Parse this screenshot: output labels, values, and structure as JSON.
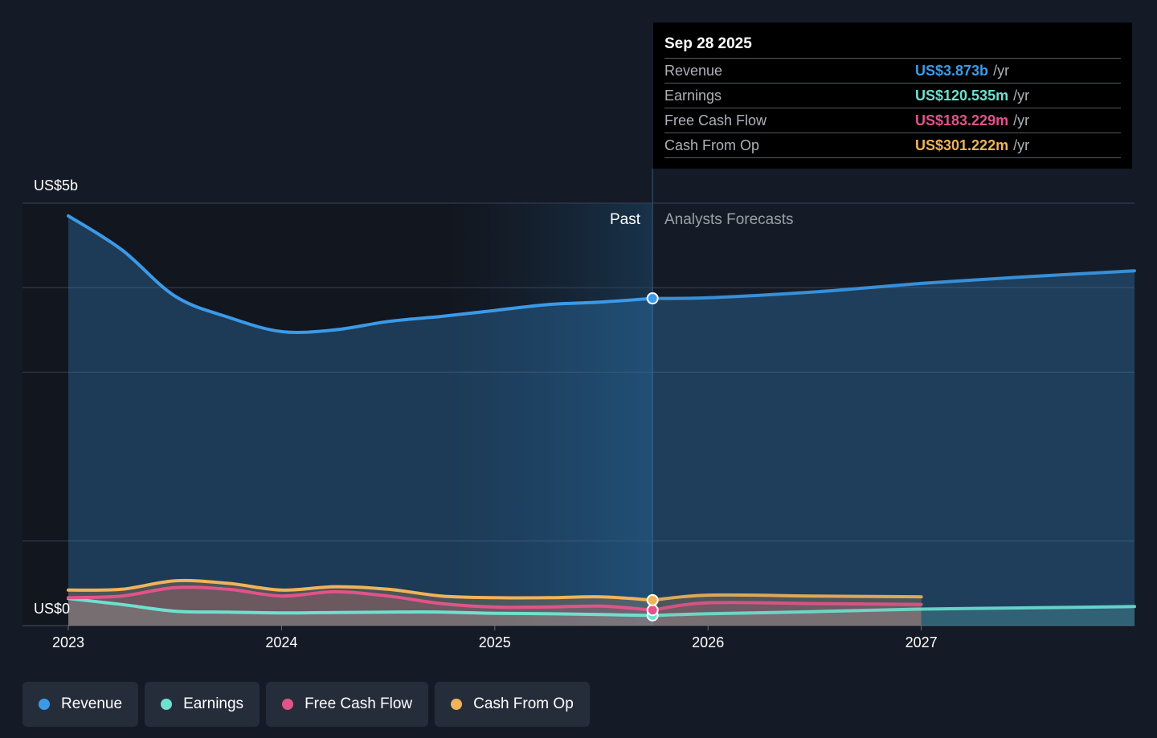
{
  "tooltip": {
    "date": "Sep 28 2025",
    "rows": [
      {
        "label": "Revenue",
        "value": "US$3.873b",
        "unit": "/yr",
        "color": "#3b9ae8"
      },
      {
        "label": "Earnings",
        "value": "US$120.535m",
        "unit": "/yr",
        "color": "#6ee0d0"
      },
      {
        "label": "Free Cash Flow",
        "value": "US$183.229m",
        "unit": "/yr",
        "color": "#e0548a"
      },
      {
        "label": "Cash From Op",
        "value": "US$301.222m",
        "unit": "/yr",
        "color": "#f0b35a"
      }
    ]
  },
  "regions": {
    "past": "Past",
    "forecast": "Analysts Forecasts"
  },
  "legend": [
    {
      "label": "Revenue",
      "color": "#3b9ae8",
      "icon": "revenue-dot-icon"
    },
    {
      "label": "Earnings",
      "color": "#6ee0d0",
      "icon": "earnings-dot-icon"
    },
    {
      "label": "Free Cash Flow",
      "color": "#e0548a",
      "icon": "fcf-dot-icon"
    },
    {
      "label": "Cash From Op",
      "color": "#f0b35a",
      "icon": "cfo-dot-icon"
    }
  ],
  "chart_data": {
    "type": "area",
    "title": "",
    "xlabel": "",
    "ylabel": "",
    "y_tick_labels": {
      "top": "US$5b",
      "bottom": "US$0"
    },
    "ylim": [
      0,
      5.0
    ],
    "xlim": [
      2023.0,
      2028.0
    ],
    "x_ticks": [
      {
        "label": "2023",
        "value": 2023
      },
      {
        "label": "2024",
        "value": 2024
      },
      {
        "label": "2025",
        "value": 2025
      },
      {
        "label": "2026",
        "value": 2026
      },
      {
        "label": "2027",
        "value": 2027
      }
    ],
    "gridlines": [
      1.0,
      3.0,
      4.0,
      5.0
    ],
    "grid": true,
    "past_shade_start": 2024.75,
    "today": 2025.74,
    "series": [
      {
        "name": "Revenue",
        "color": "#3b9ae8",
        "past": [
          [
            2023.0,
            4.85
          ],
          [
            2023.25,
            4.45
          ],
          [
            2023.5,
            3.9
          ],
          [
            2023.75,
            3.65
          ],
          [
            2024.0,
            3.48
          ],
          [
            2024.25,
            3.5
          ],
          [
            2024.5,
            3.6
          ],
          [
            2024.75,
            3.66
          ],
          [
            2025.0,
            3.73
          ],
          [
            2025.25,
            3.8
          ],
          [
            2025.5,
            3.83
          ],
          [
            2025.74,
            3.873
          ]
        ],
        "forecast": [
          [
            2025.74,
            3.873
          ],
          [
            2026.0,
            3.88
          ],
          [
            2026.5,
            3.95
          ],
          [
            2027.0,
            4.05
          ],
          [
            2027.5,
            4.13
          ],
          [
            2028.0,
            4.2
          ]
        ]
      },
      {
        "name": "Earnings",
        "color": "#6ee0d0",
        "past": [
          [
            2023.0,
            0.32
          ],
          [
            2023.25,
            0.25
          ],
          [
            2023.5,
            0.17
          ],
          [
            2023.75,
            0.16
          ],
          [
            2024.0,
            0.15
          ],
          [
            2024.25,
            0.155
          ],
          [
            2024.5,
            0.16
          ],
          [
            2024.75,
            0.16
          ],
          [
            2025.0,
            0.145
          ],
          [
            2025.25,
            0.14
          ],
          [
            2025.5,
            0.13
          ],
          [
            2025.74,
            0.12
          ]
        ],
        "forecast": [
          [
            2025.74,
            0.12
          ],
          [
            2026.0,
            0.14
          ],
          [
            2026.5,
            0.165
          ],
          [
            2027.0,
            0.195
          ],
          [
            2027.5,
            0.21
          ],
          [
            2028.0,
            0.225
          ]
        ]
      },
      {
        "name": "Free Cash Flow",
        "color": "#e0548a",
        "past": [
          [
            2023.0,
            0.33
          ],
          [
            2023.25,
            0.35
          ],
          [
            2023.5,
            0.45
          ],
          [
            2023.75,
            0.43
          ],
          [
            2024.0,
            0.35
          ],
          [
            2024.25,
            0.4
          ],
          [
            2024.5,
            0.35
          ],
          [
            2024.75,
            0.26
          ],
          [
            2025.0,
            0.22
          ],
          [
            2025.25,
            0.22
          ],
          [
            2025.5,
            0.23
          ],
          [
            2025.74,
            0.183
          ]
        ],
        "forecast": [
          [
            2025.74,
            0.183
          ],
          [
            2026.0,
            0.27
          ],
          [
            2026.5,
            0.26
          ],
          [
            2027.0,
            0.25
          ]
        ]
      },
      {
        "name": "Cash From Op",
        "color": "#f0b35a",
        "past": [
          [
            2023.0,
            0.42
          ],
          [
            2023.25,
            0.43
          ],
          [
            2023.5,
            0.53
          ],
          [
            2023.75,
            0.5
          ],
          [
            2024.0,
            0.42
          ],
          [
            2024.25,
            0.46
          ],
          [
            2024.5,
            0.43
          ],
          [
            2024.75,
            0.35
          ],
          [
            2025.0,
            0.33
          ],
          [
            2025.25,
            0.33
          ],
          [
            2025.5,
            0.34
          ],
          [
            2025.74,
            0.301
          ]
        ],
        "forecast": [
          [
            2025.74,
            0.301
          ],
          [
            2026.0,
            0.36
          ],
          [
            2026.5,
            0.35
          ],
          [
            2027.0,
            0.34
          ]
        ]
      }
    ]
  }
}
